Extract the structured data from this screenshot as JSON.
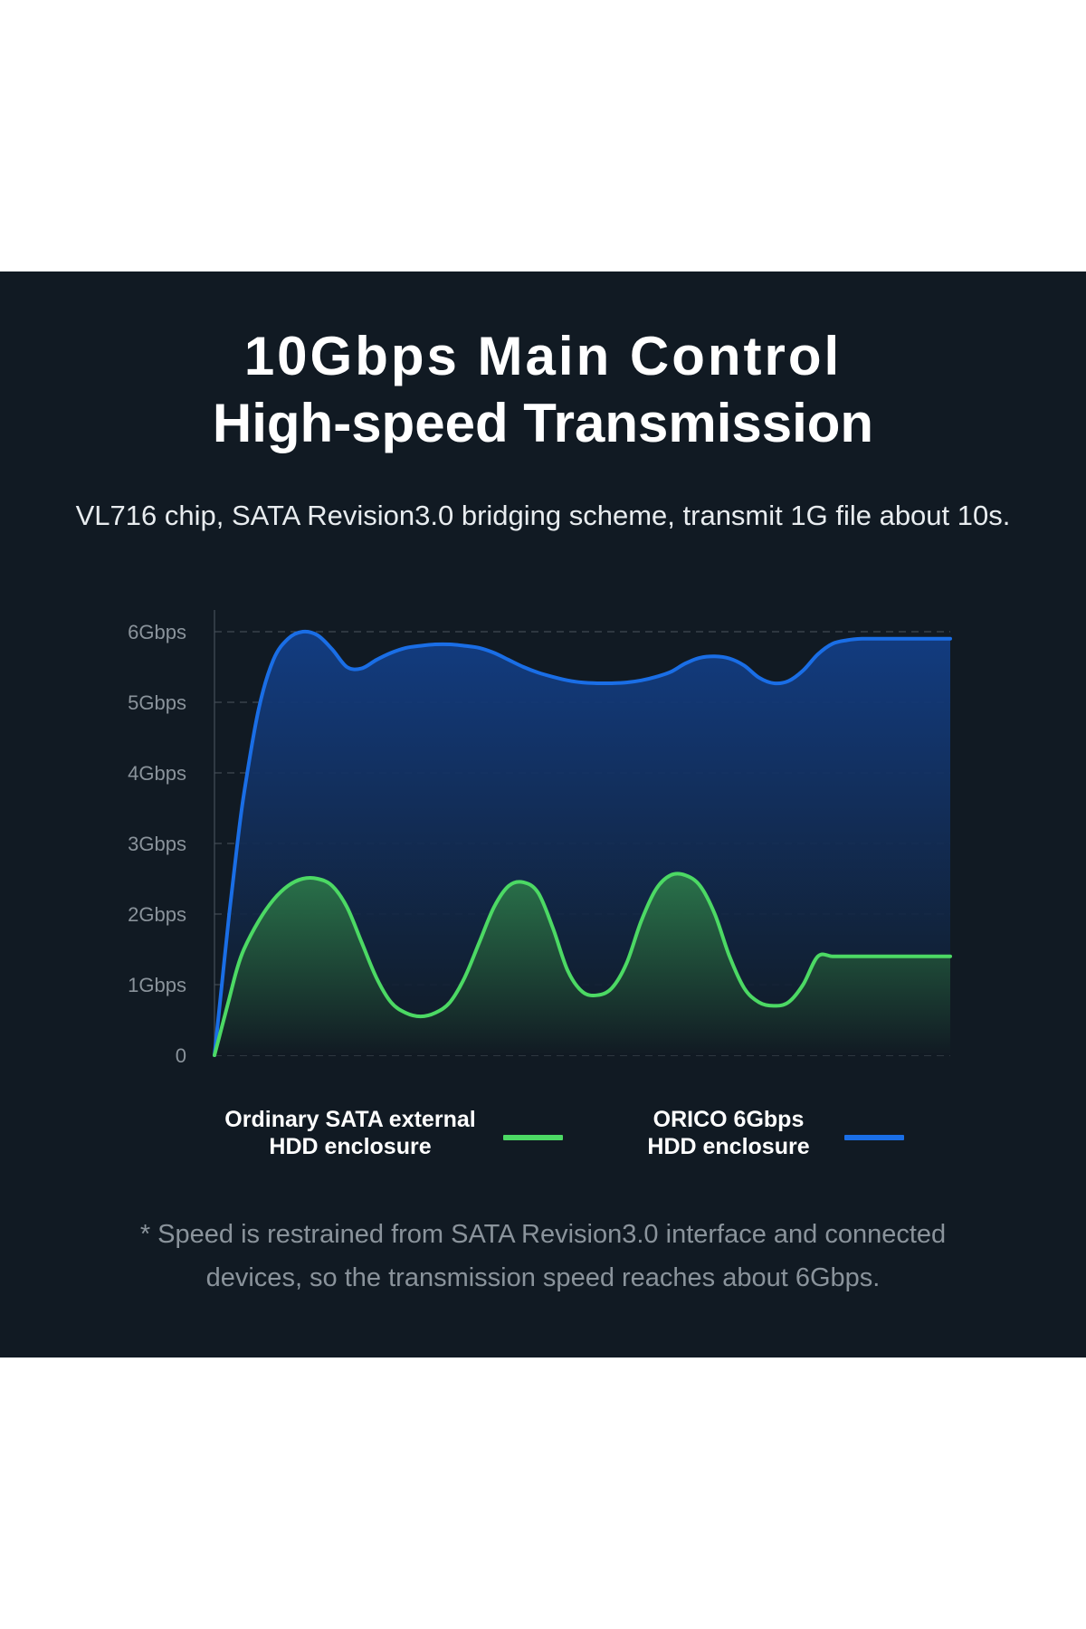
{
  "header": {
    "title_line1": "10Gbps Main Control",
    "title_line2": "High-speed Transmission",
    "subtitle": "VL716 chip, SATA Revision3.0 bridging scheme, transmit 1G file about 10s."
  },
  "legend": {
    "ordinary": {
      "line1": "Ordinary SATA external",
      "line2": "HDD enclosure",
      "color": "#4cd964"
    },
    "orico": {
      "line1": "ORICO 6Gbps",
      "line2": "HDD enclosure",
      "color": "#1a6ee6"
    }
  },
  "footnote": {
    "line1": "* Speed is restrained from SATA Revision3.0 interface and connected",
    "line2": "devices, so the transmission speed reaches about 6Gbps."
  },
  "chart_data": {
    "type": "area",
    "title": "",
    "xlabel": "",
    "ylabel": "",
    "ylim": [
      0,
      6
    ],
    "grid": true,
    "y_tick_labels": [
      "0",
      "1Gbps",
      "2Gbps",
      "3Gbps",
      "4Gbps",
      "5Gbps",
      "6Gbps"
    ],
    "x": [
      0,
      0.5,
      1,
      1.5,
      2,
      3,
      4,
      5,
      6,
      7,
      8,
      9,
      10,
      11,
      12,
      13,
      14,
      15,
      16,
      17,
      18,
      19,
      20,
      21,
      22,
      23,
      24,
      25,
      26,
      27,
      28,
      29,
      30,
      31,
      32,
      33,
      34,
      35,
      36,
      37,
      38,
      39,
      40,
      41,
      42,
      43,
      44,
      45,
      46,
      47,
      48,
      49,
      50
    ],
    "series": [
      {
        "name": "ORICO 6Gbps HDD enclosure",
        "color": "#1a6ee6",
        "values": [
          0,
          1.0,
          2.0,
          2.9,
          3.7,
          4.9,
          5.6,
          5.9,
          6.0,
          5.95,
          5.75,
          5.5,
          5.48,
          5.6,
          5.7,
          5.77,
          5.8,
          5.82,
          5.82,
          5.8,
          5.77,
          5.7,
          5.6,
          5.5,
          5.42,
          5.36,
          5.31,
          5.28,
          5.27,
          5.27,
          5.28,
          5.31,
          5.36,
          5.43,
          5.55,
          5.63,
          5.65,
          5.62,
          5.52,
          5.35,
          5.27,
          5.3,
          5.45,
          5.68,
          5.83,
          5.88,
          5.9,
          5.9,
          5.9,
          5.9,
          5.9,
          5.9,
          5.9
        ]
      },
      {
        "name": "Ordinary SATA external HDD enclosure",
        "color": "#4cd964",
        "values": [
          0,
          0.4,
          0.8,
          1.2,
          1.5,
          1.9,
          2.2,
          2.4,
          2.5,
          2.5,
          2.4,
          2.1,
          1.6,
          1.1,
          0.75,
          0.6,
          0.55,
          0.6,
          0.75,
          1.1,
          1.6,
          2.1,
          2.4,
          2.45,
          2.3,
          1.8,
          1.2,
          0.9,
          0.85,
          0.95,
          1.3,
          1.9,
          2.35,
          2.55,
          2.55,
          2.4,
          2.0,
          1.4,
          0.95,
          0.75,
          0.7,
          0.75,
          1.0,
          1.4,
          1.4,
          1.4,
          1.4,
          1.4,
          1.4,
          1.4,
          1.4,
          1.4,
          1.4
        ]
      }
    ]
  }
}
